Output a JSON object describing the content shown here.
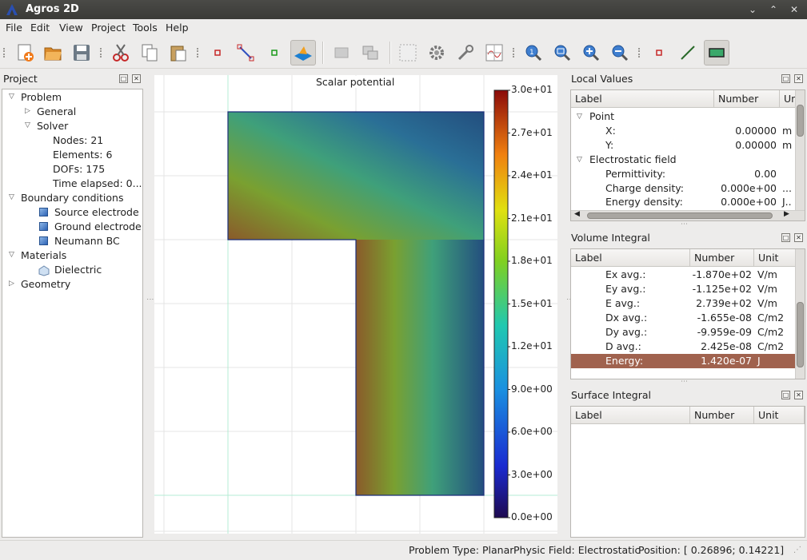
{
  "window": {
    "title": "Agros 2D"
  },
  "menu": [
    "File",
    "Edit",
    "View",
    "Project",
    "Tools",
    "Help"
  ],
  "project_panel": {
    "title": "Project",
    "tree": {
      "problem": "Problem",
      "general": "General",
      "solver": "Solver",
      "nodes": "Nodes: 21",
      "elements": "Elements: 6",
      "dofs": "DOFs: 175",
      "time": "Time elapsed: 0...",
      "boundary": "Boundary conditions",
      "bc": [
        "Source electrode",
        "Ground electrode",
        "Neumann BC"
      ],
      "materials": "Materials",
      "dielectric": "Dielectric",
      "geometry": "Geometry"
    }
  },
  "view": {
    "title": "Scalar potential",
    "scale_labels": [
      "3.0e+01",
      "2.7e+01",
      "2.4e+01",
      "2.1e+01",
      "1.8e+01",
      "1.5e+01",
      "1.2e+01",
      "9.0e+00",
      "6.0e+00",
      "3.0e+00",
      "0.0e+00"
    ]
  },
  "local_values": {
    "title": "Local Values",
    "headers": [
      "Label",
      "Number",
      "Un"
    ],
    "point_group": "Point",
    "point_rows": [
      {
        "label": "X:",
        "value": "0.00000",
        "unit": "m"
      },
      {
        "label": "Y:",
        "value": "0.00000",
        "unit": "m"
      }
    ],
    "field_group": "Electrostatic field",
    "field_rows": [
      {
        "label": "Permittivity:",
        "value": "0.00",
        "unit": ""
      },
      {
        "label": "Charge density:",
        "value": "0.000e+00",
        "unit": "..."
      },
      {
        "label": "Energy density:",
        "value": "0.000e+00",
        "unit": "J.."
      }
    ]
  },
  "volume_integral": {
    "title": "Volume Integral",
    "headers": [
      "Label",
      "Number",
      "Unit"
    ],
    "rows": [
      {
        "label": "Ex avg.:",
        "value": "-1.870e+02",
        "unit": "V/m"
      },
      {
        "label": "Ey avg.:",
        "value": "-1.125e+02",
        "unit": "V/m"
      },
      {
        "label": "E avg.:",
        "value": "2.739e+02",
        "unit": "V/m"
      },
      {
        "label": "Dx avg.:",
        "value": "-1.655e-08",
        "unit": "C/m2"
      },
      {
        "label": "Dy avg.:",
        "value": "-9.959e-09",
        "unit": "C/m2"
      },
      {
        "label": "D avg.:",
        "value": "2.425e-08",
        "unit": "C/m2"
      },
      {
        "label": "Energy:",
        "value": "1.420e-07",
        "unit": "J"
      }
    ]
  },
  "surface_integral": {
    "title": "Surface Integral",
    "headers": [
      "Label",
      "Number",
      "Unit"
    ]
  },
  "status": {
    "problem_type": "Problem Type: Planar",
    "physic_field": "Physic Field: Electrostatic",
    "position": "Position: [ 0.26896;  0.14221]"
  },
  "colors": {
    "selected_row": "#a0624e",
    "titlebar": "#3c3b37"
  }
}
